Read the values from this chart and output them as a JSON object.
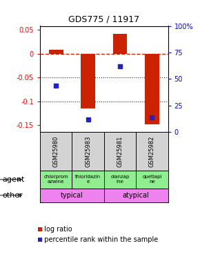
{
  "title": "GDS775 / 11917",
  "samples": [
    "GSM25980",
    "GSM25983",
    "GSM25981",
    "GSM25982"
  ],
  "log_ratios": [
    0.008,
    -0.115,
    0.042,
    -0.148
  ],
  "percentile_ranks": [
    0.44,
    0.12,
    0.62,
    0.14
  ],
  "agent_names": [
    "chlorprom\nazwine",
    "thioridazin\ne",
    "olanzap\nine",
    "quetiapi\nne"
  ],
  "agent_color": "#90ee90",
  "other_groups": [
    [
      "typical",
      0,
      2
    ],
    [
      "atypical",
      2,
      4
    ]
  ],
  "other_color": "#ee82ee",
  "ylim_left": [
    -0.165,
    0.058
  ],
  "yticks_left": [
    -0.15,
    -0.1,
    -0.05,
    0.0,
    0.05
  ],
  "ytick_labels_left": [
    "-0.15",
    "-0.1",
    "-0.05",
    "0",
    "0.05"
  ],
  "yticks_right_pct": [
    0,
    25,
    50,
    75,
    100
  ],
  "ytick_labels_right": [
    "0",
    "25",
    "50",
    "75",
    "100%"
  ],
  "bar_color": "#cc2200",
  "dot_color": "#2222cc",
  "hline_color": "#cc2200",
  "grid_color": "#222222",
  "gsm_bg": "#d3d3d3",
  "background_color": "#ffffff",
  "label_agent": "agent",
  "label_other": "other",
  "legend_bar": "log ratio",
  "legend_dot": "percentile rank within the sample"
}
